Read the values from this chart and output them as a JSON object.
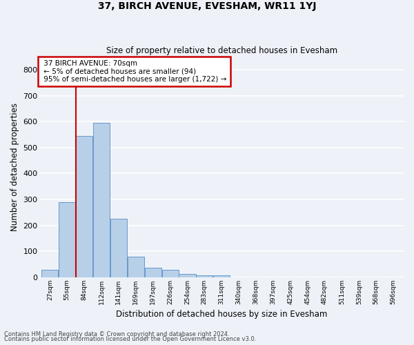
{
  "title1": "37, BIRCH AVENUE, EVESHAM, WR11 1YJ",
  "title2": "Size of property relative to detached houses in Evesham",
  "xlabel": "Distribution of detached houses by size in Evesham",
  "ylabel": "Number of detached properties",
  "footnote1": "Contains HM Land Registry data © Crown copyright and database right 2024.",
  "footnote2": "Contains public sector information licensed under the Open Government Licence v3.0.",
  "bar_labels": [
    "27sqm",
    "55sqm",
    "84sqm",
    "112sqm",
    "141sqm",
    "169sqm",
    "197sqm",
    "226sqm",
    "254sqm",
    "283sqm",
    "311sqm",
    "340sqm",
    "368sqm",
    "397sqm",
    "425sqm",
    "454sqm",
    "482sqm",
    "511sqm",
    "539sqm",
    "568sqm",
    "596sqm"
  ],
  "bar_values": [
    28,
    290,
    545,
    595,
    225,
    80,
    38,
    28,
    12,
    8,
    7,
    0,
    0,
    0,
    0,
    0,
    0,
    0,
    0,
    0,
    0
  ],
  "bar_color": "#b8cfe8",
  "bar_edge_color": "#6699cc",
  "annotation_line0": "37 BIRCH AVENUE: 70sqm",
  "annotation_line1": "← 5% of detached houses are smaller (94)",
  "annotation_line2": "95% of semi-detached houses are larger (1,722) →",
  "annotation_box_color": "#ffffff",
  "annotation_box_edge_color": "#cc0000",
  "vline_color": "#cc0000",
  "ylim": [
    0,
    850
  ],
  "yticks": [
    0,
    100,
    200,
    300,
    400,
    500,
    600,
    700,
    800
  ],
  "background_color": "#eef2f8",
  "grid_color": "#ffffff",
  "vline_x_index": 1.52
}
